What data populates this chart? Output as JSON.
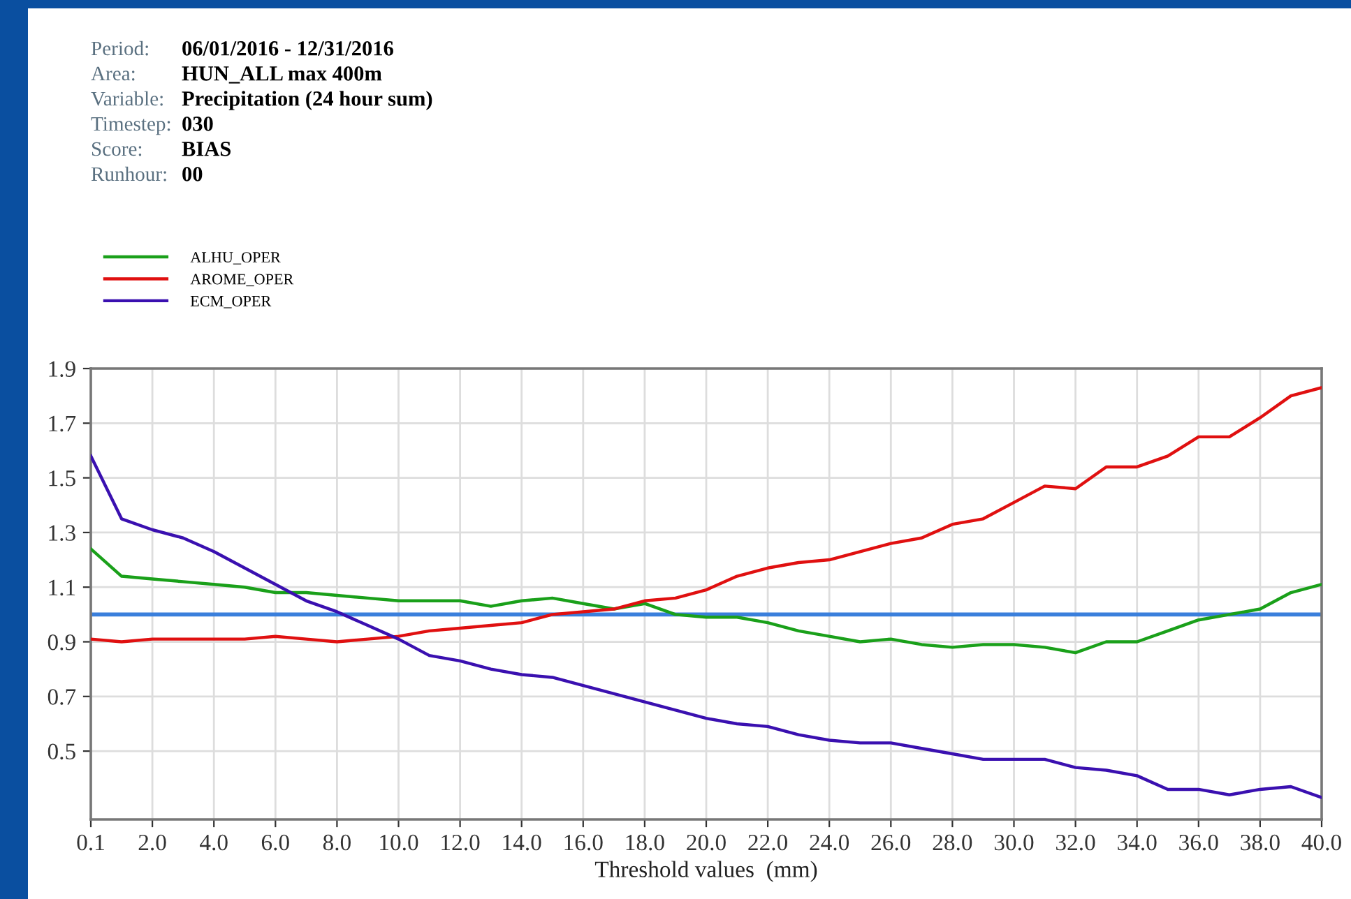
{
  "chart_data": {
    "type": "line",
    "annotations": [
      "Period:",
      "06/01/2016 - 12/31/2016",
      "Area:",
      "HUN_ALL max 400m",
      "Variable:",
      "Precipitation (24 hour sum)",
      "Timestep:",
      "030",
      "Score:",
      "BIAS",
      "Runhour:",
      "00"
    ],
    "xlabel": "Threshold values  (mm)",
    "categories": [
      "0.1",
      null,
      "2.0",
      null,
      "4.0",
      null,
      "6.0",
      null,
      "8.0",
      null,
      "10.0",
      null,
      "12.0",
      null,
      "14.0",
      null,
      "16.0",
      null,
      "18.0",
      null,
      "20.0",
      null,
      "22.0",
      null,
      "24.0",
      null,
      "26.0",
      null,
      "28.0",
      null,
      "30.0",
      null,
      "32.0",
      null,
      "34.0",
      null,
      "36.0",
      null,
      "38.0",
      null,
      "40.0"
    ],
    "series": [
      {
        "name": "ALHU_OPER",
        "color": "#1aa01a",
        "values": [
          1.24,
          1.14,
          1.13,
          1.12,
          1.11,
          1.1,
          1.08,
          1.08,
          1.07,
          1.06,
          1.05,
          1.05,
          1.05,
          1.03,
          1.05,
          1.06,
          1.04,
          1.02,
          1.04,
          1.0,
          0.99,
          0.99,
          0.97,
          0.94,
          0.92,
          0.9,
          0.91,
          0.89,
          0.88,
          0.89,
          0.89,
          0.88,
          0.86,
          0.9,
          0.9,
          0.94,
          0.98,
          1.0,
          1.02,
          1.08,
          1.11
        ]
      },
      {
        "name": "AROME_OPER",
        "color": "#e01010",
        "values": [
          0.91,
          0.9,
          0.91,
          0.91,
          0.91,
          0.91,
          0.92,
          0.91,
          0.9,
          0.91,
          0.92,
          0.94,
          0.95,
          0.96,
          0.97,
          1.0,
          1.01,
          1.02,
          1.05,
          1.06,
          1.09,
          1.14,
          1.17,
          1.19,
          1.2,
          1.23,
          1.26,
          1.28,
          1.33,
          1.35,
          1.41,
          1.47,
          1.46,
          1.54,
          1.54,
          1.58,
          1.65,
          1.65,
          1.72,
          1.8,
          1.83
        ]
      },
      {
        "name": "ECM_OPER",
        "color": "#3a10b0",
        "values": [
          1.58,
          1.35,
          1.31,
          1.28,
          1.23,
          1.17,
          1.11,
          1.05,
          1.01,
          0.96,
          0.91,
          0.85,
          0.83,
          0.8,
          0.78,
          0.77,
          0.74,
          0.71,
          0.68,
          0.65,
          0.62,
          0.6,
          0.59,
          0.56,
          0.54,
          0.53,
          0.53,
          0.51,
          0.49,
          0.47,
          0.47,
          0.47,
          0.44,
          0.43,
          0.41,
          0.36,
          0.36,
          0.34,
          0.36,
          0.37,
          0.33
        ]
      }
    ],
    "ref_lines": [
      {
        "axis": "y",
        "value": 1.0,
        "color": "#3a7fdc"
      }
    ],
    "ylim": [
      0.25,
      1.9
    ],
    "yticks": [
      0.5,
      0.7,
      0.9,
      1.1,
      1.3,
      1.5,
      1.7,
      1.9
    ],
    "grid": true,
    "legend": "top left",
    "marker": "none",
    "line_style": "solid"
  }
}
